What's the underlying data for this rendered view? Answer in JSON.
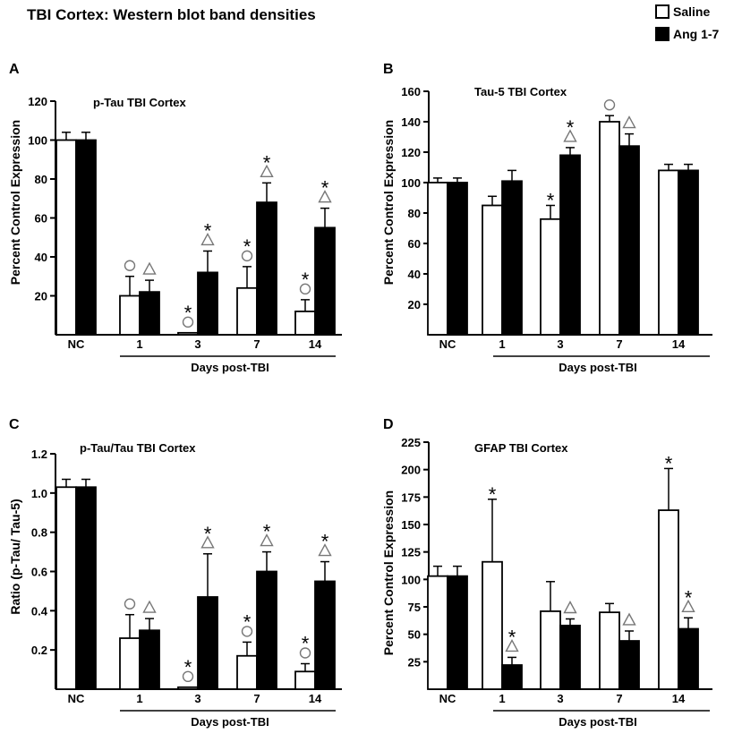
{
  "figure_title": "TBI Cortex: Western blot band densities",
  "legend": {
    "saline_label": "Saline",
    "ang_label": "Ang 1-7",
    "saline_color": "#ffffff",
    "ang_color": "#000000"
  },
  "markers": {
    "star": "*",
    "circle": "○",
    "triangle": "△"
  },
  "chart_data": [
    {
      "letter": "A",
      "type": "bar",
      "title": "p-Tau TBI Cortex",
      "ylabel": "Percent Control Expression",
      "xlabel": "Days post-TBI",
      "categories": [
        "NC",
        "1",
        "3",
        "7",
        "14"
      ],
      "ylim": [
        0,
        120
      ],
      "yticks": [
        20,
        40,
        60,
        80,
        100,
        120
      ],
      "series": [
        {
          "name": "Saline",
          "values": [
            100,
            20,
            1,
            24,
            12
          ],
          "errors": [
            4,
            10,
            0,
            11,
            6
          ]
        },
        {
          "name": "Ang 1-7",
          "values": [
            100,
            22,
            32,
            68,
            55
          ],
          "errors": [
            4,
            6,
            11,
            10,
            10
          ]
        }
      ],
      "annotations": [
        [
          "",
          "",
          "",
          "",
          ""
        ],
        [
          "",
          "",
          "",
          "",
          ""
        ]
      ],
      "annotation_rows": [
        {
          "series": 0,
          "marks": [
            "",
            "○",
            "*○",
            "*○",
            "*○"
          ]
        },
        {
          "series": 1,
          "marks": [
            "",
            "△",
            "*△",
            "*△",
            "*△"
          ]
        }
      ]
    },
    {
      "letter": "B",
      "type": "bar",
      "title": "Tau-5 TBI Cortex",
      "ylabel": "Percent Control Expression",
      "xlabel": "Days post-TBI",
      "categories": [
        "NC",
        "1",
        "3",
        "7",
        "14"
      ],
      "ylim": [
        0,
        160
      ],
      "yticks": [
        20,
        40,
        60,
        80,
        100,
        120,
        140,
        160
      ],
      "series": [
        {
          "name": "Saline",
          "values": [
            100,
            85,
            76,
            140,
            108
          ],
          "errors": [
            3,
            6,
            9,
            4,
            4
          ]
        },
        {
          "name": "Ang 1-7",
          "values": [
            100,
            101,
            118,
            124,
            108
          ],
          "errors": [
            3,
            7,
            5,
            8,
            4
          ]
        }
      ],
      "annotation_rows": [
        {
          "series": 0,
          "marks": [
            "",
            "",
            "*",
            "○",
            ""
          ]
        },
        {
          "series": 1,
          "marks": [
            "",
            "",
            "*△",
            "△",
            ""
          ]
        }
      ]
    },
    {
      "letter": "C",
      "type": "bar",
      "title": "p-Tau/Tau TBI Cortex",
      "ylabel": "Ratio (p-Tau/ Tau-5)",
      "xlabel": "Days post-TBI",
      "categories": [
        "NC",
        "1",
        "3",
        "7",
        "14"
      ],
      "ylim": [
        0,
        1.2
      ],
      "yticks": [
        0.2,
        0.4,
        0.6,
        0.8,
        1.0,
        1.2
      ],
      "tick_decimals": 1,
      "series": [
        {
          "name": "Saline",
          "values": [
            1.03,
            0.26,
            0.01,
            0.17,
            0.09
          ],
          "errors": [
            0.04,
            0.12,
            0,
            0.07,
            0.04
          ]
        },
        {
          "name": "Ang 1-7",
          "values": [
            1.03,
            0.3,
            0.47,
            0.6,
            0.55
          ],
          "errors": [
            0.04,
            0.06,
            0.22,
            0.1,
            0.1
          ]
        }
      ],
      "annotation_rows": [
        {
          "series": 0,
          "marks": [
            "",
            "○",
            "*○",
            "*○",
            "*○"
          ]
        },
        {
          "series": 1,
          "marks": [
            "",
            "△",
            "*△",
            "*△",
            "*△"
          ]
        }
      ]
    },
    {
      "letter": "D",
      "type": "bar",
      "title": "GFAP TBI Cortex",
      "ylabel": "Percent Control Expression",
      "xlabel": "Days post-TBI",
      "categories": [
        "NC",
        "1",
        "3",
        "7",
        "14"
      ],
      "ylim": [
        0,
        225
      ],
      "yticks": [
        25,
        50,
        75,
        100,
        125,
        150,
        175,
        200,
        225
      ],
      "series": [
        {
          "name": "Saline",
          "values": [
            103,
            116,
            71,
            70,
            163
          ],
          "errors": [
            9,
            57,
            27,
            8,
            38
          ]
        },
        {
          "name": "Ang 1-7",
          "values": [
            103,
            22,
            58,
            44,
            55
          ],
          "errors": [
            9,
            7,
            6,
            9,
            10
          ]
        }
      ],
      "annotation_rows": [
        {
          "series": 0,
          "marks": [
            "",
            "*",
            "",
            "",
            "*"
          ]
        },
        {
          "series": 1,
          "marks": [
            "",
            "*△",
            "△",
            "△",
            "*△"
          ]
        }
      ]
    }
  ]
}
